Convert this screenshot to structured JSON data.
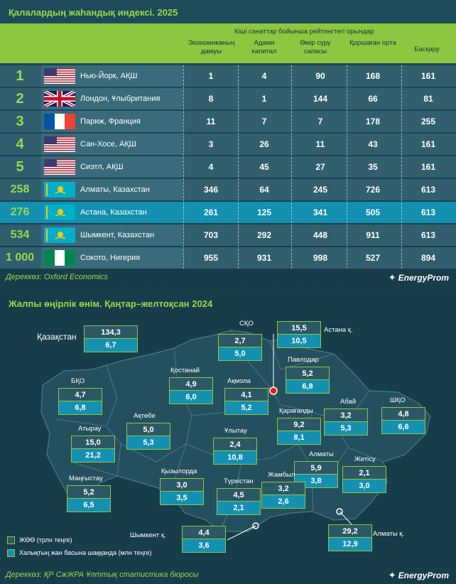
{
  "table": {
    "title": "Қалалардың жаһандық индексі. 2025",
    "group_header": "Кіші санаттар бойынша рейтингтегі орындар",
    "columns": [
      "Экономиканың дамуы",
      "Адами капитал",
      "Өмір сүру сапасы",
      "Қоршаған орта",
      "Басқару"
    ],
    "rows": [
      {
        "rank": "1",
        "city": "Нью-Йорк, АҚШ",
        "flag": "us-flag-icon",
        "values": [
          "1",
          "4",
          "90",
          "168",
          "161"
        ]
      },
      {
        "rank": "2",
        "city": "Лондон, Ұлыбритания",
        "flag": "uk-flag-icon",
        "values": [
          "8",
          "1",
          "144",
          "66",
          "81"
        ]
      },
      {
        "rank": "3",
        "city": "Париж, Франция",
        "flag": "fr-flag-icon",
        "values": [
          "11",
          "7",
          "7",
          "178",
          "255"
        ]
      },
      {
        "rank": "4",
        "city": "Сан-Хосе, АҚШ",
        "flag": "us-flag-icon",
        "values": [
          "3",
          "26",
          "11",
          "43",
          "161"
        ]
      },
      {
        "rank": "5",
        "city": "Сиэтл, АҚШ",
        "flag": "us-flag-icon",
        "values": [
          "4",
          "45",
          "27",
          "35",
          "161"
        ]
      },
      {
        "rank": "258",
        "city": "Алматы, Казахстан",
        "flag": "kz-flag-icon",
        "values": [
          "346",
          "64",
          "245",
          "726",
          "613"
        ]
      },
      {
        "rank": "276",
        "city": "Астана, Казахстан",
        "flag": "kz-flag-icon",
        "highlight": true,
        "values": [
          "261",
          "125",
          "341",
          "505",
          "613"
        ]
      },
      {
        "rank": "534",
        "city": "Шымкент, Казахстан",
        "flag": "kz-flag-icon",
        "values": [
          "703",
          "292",
          "448",
          "911",
          "613"
        ]
      },
      {
        "rank": "1 000",
        "city": "Сокото, Нигерия",
        "flag": "ng-flag-icon",
        "values": [
          "955",
          "931",
          "998",
          "527",
          "894"
        ]
      }
    ],
    "source": "Дереккөз: Oxford Economics",
    "logo": "EnergyProm"
  },
  "map": {
    "title": "Жалпы өңірлік өнім. Қаңтар–желтоқсан 2024",
    "country_label": "Қазақстан",
    "country": {
      "v1": "134,3",
      "v2": "6,7"
    },
    "regions": [
      {
        "name": "СҚО",
        "v1": "2,7",
        "v2": "5,0"
      },
      {
        "name": "Астана қ.",
        "v1": "15,5",
        "v2": "10,5"
      },
      {
        "name": "Павлодар",
        "v1": "5,2",
        "v2": "6,8"
      },
      {
        "name": "Қостанай",
        "v1": "4,9",
        "v2": "6,0"
      },
      {
        "name": "Ақмола",
        "v1": "4,1",
        "v2": "5,2"
      },
      {
        "name": "БҚО",
        "v1": "4,7",
        "v2": "6,8"
      },
      {
        "name": "Ақтөбе",
        "v1": "5,0",
        "v2": "5,3"
      },
      {
        "name": "Абай",
        "v1": "3,2",
        "v2": "5,3"
      },
      {
        "name": "ШҚО",
        "v1": "4,8",
        "v2": "6,6"
      },
      {
        "name": "Қарағанды",
        "v1": "9,2",
        "v2": "8,1"
      },
      {
        "name": "Атырау",
        "v1": "15,0",
        "v2": "21,2"
      },
      {
        "name": "Ұлытау",
        "v1": "2,4",
        "v2": "10,8"
      },
      {
        "name": "Алматы",
        "v1": "5,9",
        "v2": "3,8"
      },
      {
        "name": "Жетісу",
        "v1": "2,1",
        "v2": "3,0"
      },
      {
        "name": "Маңғыстау",
        "v1": "5,2",
        "v2": "6,5"
      },
      {
        "name": "Қызылорда",
        "v1": "3,0",
        "v2": "3,5"
      },
      {
        "name": "Түркістан",
        "v1": "4,5",
        "v2": "2,1"
      },
      {
        "name": "Жамбыл",
        "v1": "3,2",
        "v2": "2,6"
      },
      {
        "name": "Шымкент қ.",
        "v1": "4,4",
        "v2": "3,6"
      },
      {
        "name": "Алматы қ.",
        "v1": "29,2",
        "v2": "12,9"
      }
    ],
    "legend": [
      "ЖӨӨ (трлн теңге)",
      "Халықтың жан басына шаққанда (млн теңге)"
    ],
    "source": "Дереккөз: ҚР СжЖРА Ұлттық статистика бюросы",
    "logo": "EnergyProm"
  },
  "colors": {
    "accent_green": "#8dc63f",
    "teal": "#1490b0",
    "bg": "#1d4755"
  },
  "chart_data": [
    {
      "type": "table",
      "title": "Қалалардың жаһандық индексі. 2025",
      "columns": [
        "Экономиканың дамуы",
        "Адами капитал",
        "Өмір сүру сапасы",
        "Қоршаған орта",
        "Басқару"
      ],
      "rows": [
        [
          "1",
          "Нью-Йорк, АҚШ",
          1,
          4,
          90,
          168,
          161
        ],
        [
          "2",
          "Лондон, Ұлыбритания",
          8,
          1,
          144,
          66,
          81
        ],
        [
          "3",
          "Париж, Франция",
          11,
          7,
          7,
          178,
          255
        ],
        [
          "4",
          "Сан-Хосе, АҚШ",
          3,
          26,
          11,
          43,
          161
        ],
        [
          "5",
          "Сиэтл, АҚШ",
          4,
          45,
          27,
          35,
          161
        ],
        [
          "258",
          "Алматы, Казахстан",
          346,
          64,
          245,
          726,
          613
        ],
        [
          "276",
          "Астана, Казахстан",
          261,
          125,
          341,
          505,
          613
        ],
        [
          "534",
          "Шымкент, Казахстан",
          703,
          292,
          448,
          911,
          613
        ],
        [
          "1 000",
          "Сокото, Нигерия",
          955,
          931,
          998,
          527,
          894
        ]
      ]
    },
    {
      "type": "table",
      "title": "Жалпы өңірлік өнім. Қаңтар–желтоқсан 2024",
      "columns": [
        "ЖӨӨ (трлн теңге)",
        "Халықтың жан басына шаққанда (млн теңге)"
      ],
      "rows": [
        [
          "Қазақстан",
          134.3,
          6.7
        ],
        [
          "СҚО",
          2.7,
          5.0
        ],
        [
          "Астана қ.",
          15.5,
          10.5
        ],
        [
          "Павлодар",
          5.2,
          6.8
        ],
        [
          "Қостанай",
          4.9,
          6.0
        ],
        [
          "Ақмола",
          4.1,
          5.2
        ],
        [
          "БҚО",
          4.7,
          6.8
        ],
        [
          "Ақтөбе",
          5.0,
          5.3
        ],
        [
          "Абай",
          3.2,
          5.3
        ],
        [
          "ШҚО",
          4.8,
          6.6
        ],
        [
          "Қарағанды",
          9.2,
          8.1
        ],
        [
          "Атырау",
          15.0,
          21.2
        ],
        [
          "Ұлытау",
          2.4,
          10.8
        ],
        [
          "Алматы",
          5.9,
          3.8
        ],
        [
          "Жетісу",
          2.1,
          3.0
        ],
        [
          "Маңғыстау",
          5.2,
          6.5
        ],
        [
          "Қызылорда",
          3.0,
          3.5
        ],
        [
          "Түркістан",
          4.5,
          2.1
        ],
        [
          "Жамбыл",
          3.2,
          2.6
        ],
        [
          "Шымкент қ.",
          4.4,
          3.6
        ],
        [
          "Алматы қ.",
          29.2,
          12.9
        ]
      ]
    }
  ]
}
